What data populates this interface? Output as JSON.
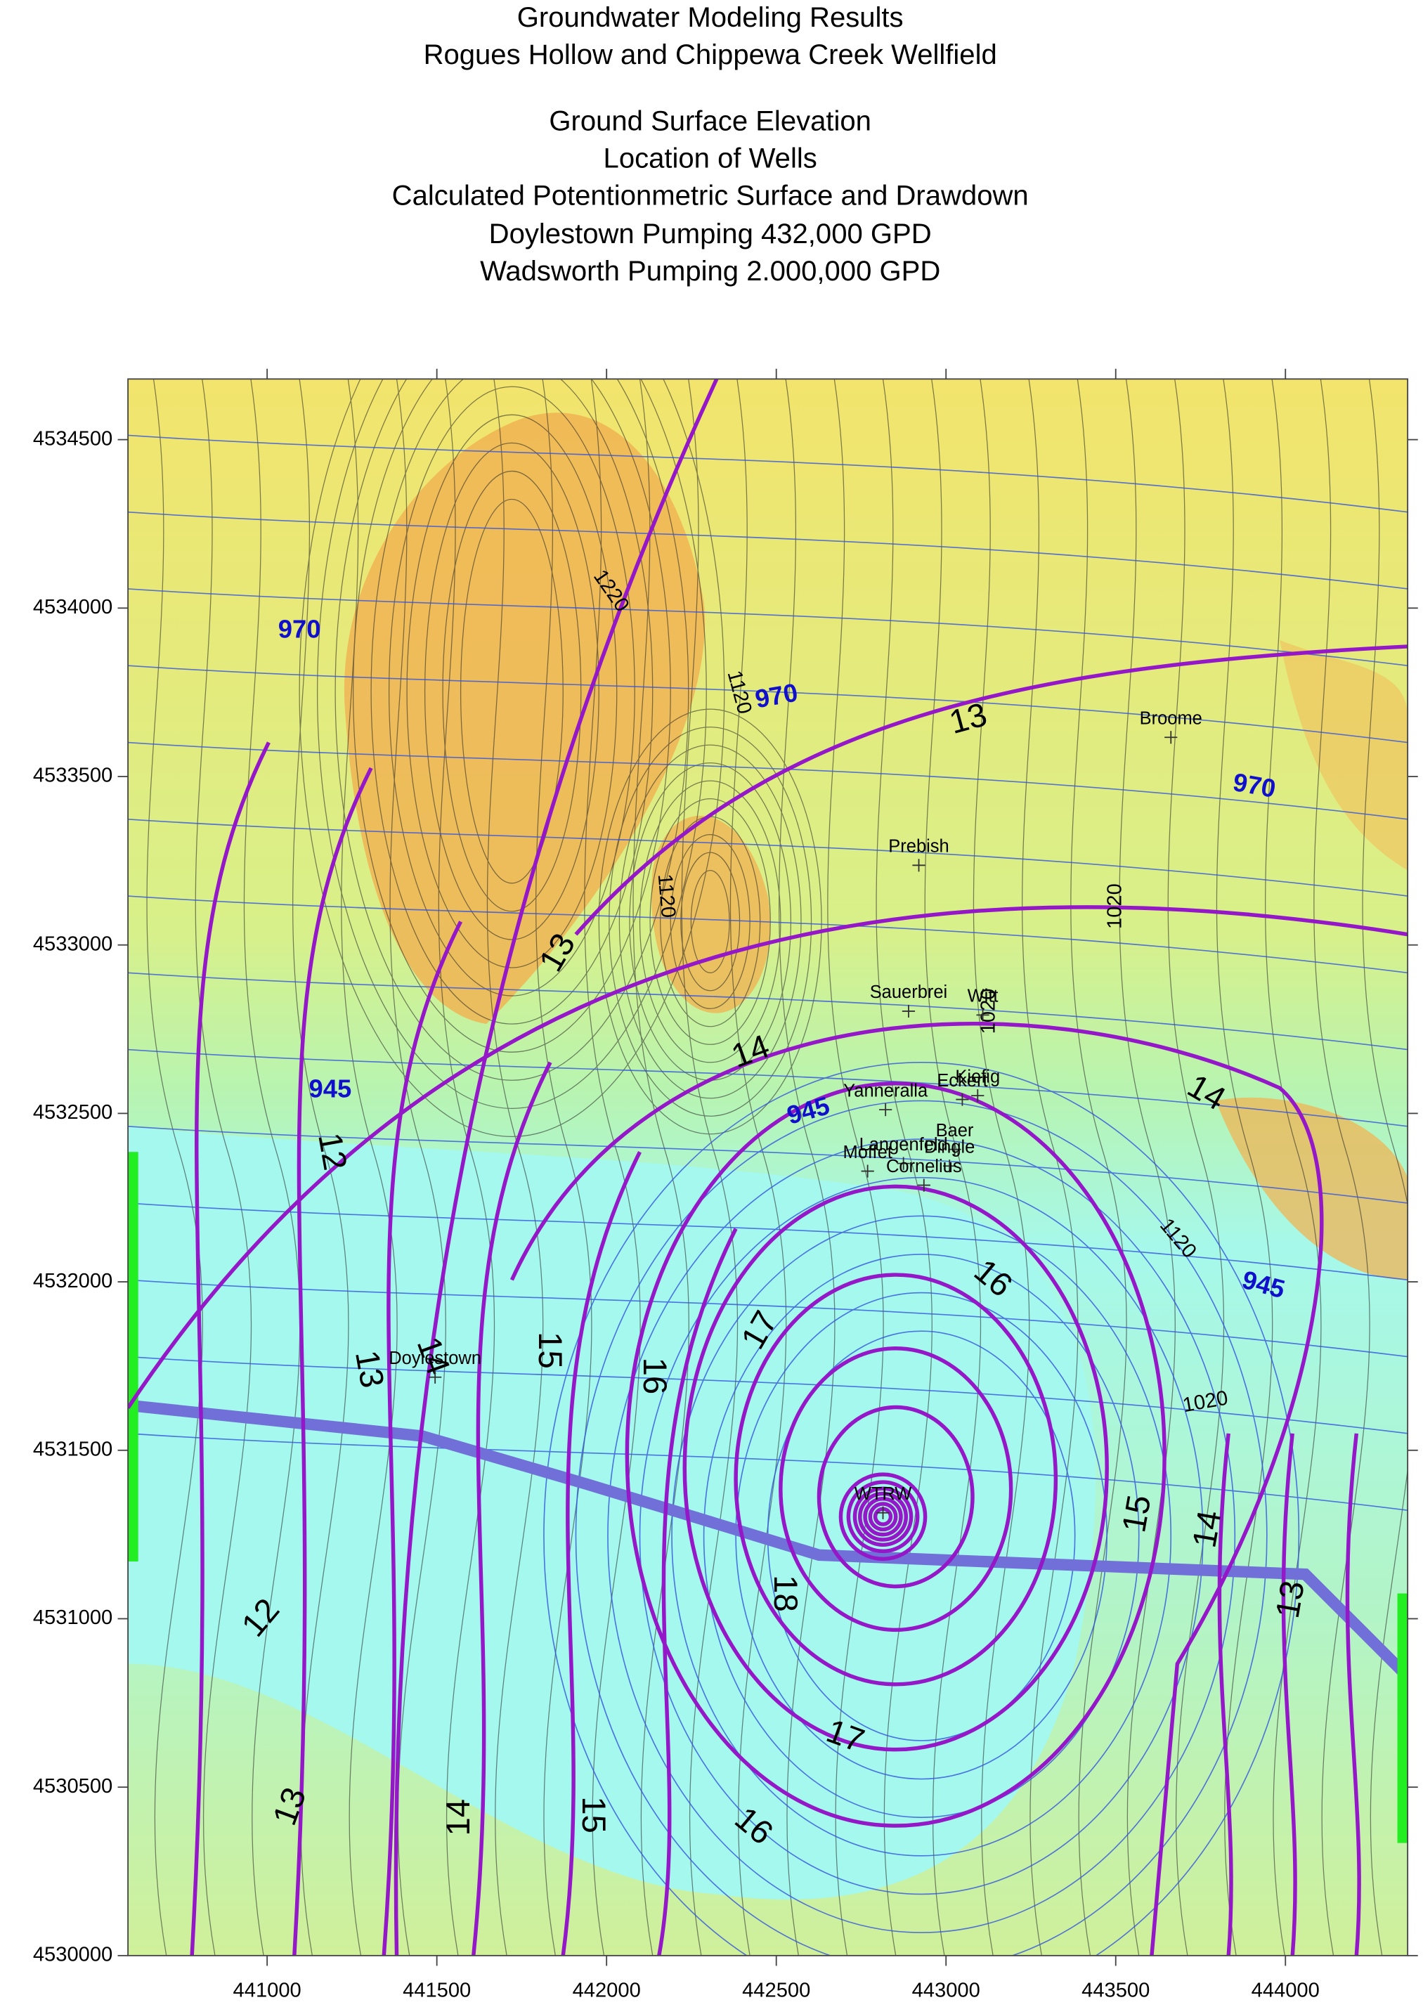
{
  "title": [
    "Groundwater Modeling Results",
    "Rogues Hollow and Chippewa Creek Wellfield",
    "Ground Surface Elevation",
    "Location of Wells",
    "Calculated Potentionmetric Surface and Drawdown",
    "Doylestown Pumping 432,000 GPD",
    "Wadsworth Pumping 2.000,000 GPD"
  ],
  "axes": {
    "xlim": [
      440590,
      444360
    ],
    "ylim": [
      4530000,
      4534680
    ],
    "xticks": [
      441000,
      441500,
      442000,
      442500,
      443000,
      443500,
      444000
    ],
    "yticks": [
      4530000,
      4530500,
      4531000,
      4531500,
      4532000,
      4532500,
      4533000,
      4533500,
      4534000,
      4534500
    ]
  },
  "drawdown_labels": [
    "13",
    "13",
    "12",
    "14",
    "14",
    "14",
    "13",
    "15",
    "16",
    "17",
    "16",
    "18",
    "17",
    "16",
    "15",
    "14",
    "13",
    "12",
    "13",
    "14",
    "15"
  ],
  "elevation_labels": [
    "1220",
    "1120",
    "1120",
    "1020",
    "1020",
    "1120",
    "1020"
  ],
  "potentiometric_labels": [
    "970",
    "970",
    "970",
    "945",
    "945",
    "945"
  ],
  "wells": [
    "Broome",
    "Prebish",
    "Sauerbrei",
    "Witt",
    "Yanneralla",
    "Eckert",
    "Kiefig",
    "Baer",
    "Langenfeld",
    "Moffet",
    "Dingle",
    "Cornelius",
    "Doylestown",
    "WTRW"
  ]
}
